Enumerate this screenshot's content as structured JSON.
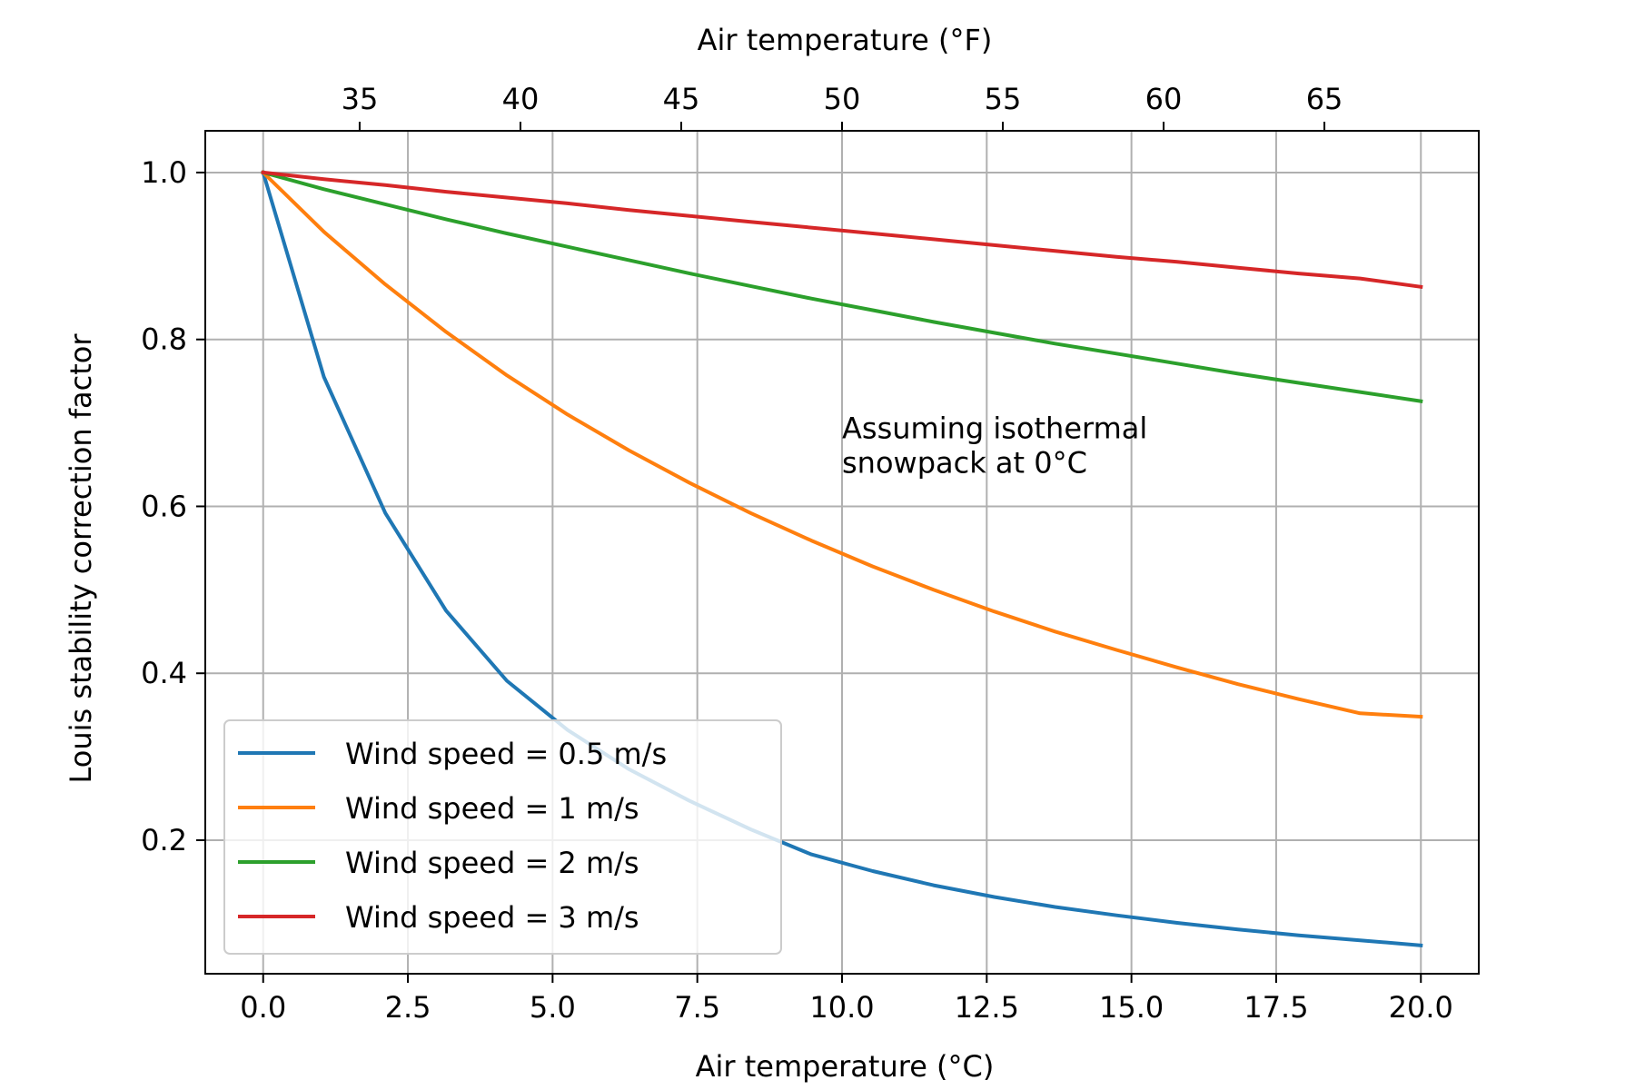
{
  "chart_data": {
    "type": "line",
    "xlabel": "Air temperature (°C)",
    "x2label": "Air temperature (°F)",
    "ylabel": "Louis stability correction factor",
    "xlim": [
      -1,
      21
    ],
    "ylim": [
      0.04,
      1.05
    ],
    "xticks": [
      0.0,
      2.5,
      5.0,
      7.5,
      10.0,
      12.5,
      15.0,
      17.5,
      20.0
    ],
    "xtick_labels": [
      "0.0",
      "2.5",
      "5.0",
      "7.5",
      "10.0",
      "12.5",
      "15.0",
      "17.5",
      "20.0"
    ],
    "yticks": [
      0.2,
      0.4,
      0.6,
      0.8,
      1.0
    ],
    "ytick_labels": [
      "0.2",
      "0.4",
      "0.6",
      "0.8",
      "1.0"
    ],
    "x2ticks_f": [
      35,
      40,
      45,
      50,
      55,
      60,
      65
    ],
    "x2tick_labels": [
      "35",
      "40",
      "45",
      "50",
      "55",
      "60",
      "65"
    ],
    "grid": true,
    "legend_position": "lower-left",
    "annotation": {
      "lines": [
        "Assuming isothermal",
        "snowpack at 0°C"
      ],
      "x": 10.0,
      "y": 0.66
    },
    "x": [
      0.0,
      1.05,
      2.11,
      3.16,
      4.21,
      5.26,
      6.32,
      7.37,
      8.42,
      9.47,
      10.53,
      11.58,
      12.63,
      13.68,
      14.74,
      15.79,
      16.84,
      17.89,
      18.95,
      20.0
    ],
    "series": [
      {
        "name": "Wind speed = 0.5 m/s",
        "color": "#1f77b4",
        "values": [
          1.0,
          0.755,
          0.592,
          0.475,
          0.391,
          0.332,
          0.285,
          0.247,
          0.213,
          0.183,
          0.163,
          0.146,
          0.132,
          0.12,
          0.11,
          0.101,
          0.093,
          0.086,
          0.08,
          0.074
        ]
      },
      {
        "name": "Wind speed = 1 m/s",
        "color": "#ff7f0e",
        "values": [
          1.0,
          0.929,
          0.866,
          0.809,
          0.757,
          0.71,
          0.667,
          0.628,
          0.592,
          0.559,
          0.528,
          0.5,
          0.474,
          0.45,
          0.428,
          0.407,
          0.387,
          0.369,
          0.352,
          0.348
        ]
      },
      {
        "name": "Wind speed = 2 m/s",
        "color": "#2ca02c",
        "values": [
          1.0,
          0.98,
          0.962,
          0.944,
          0.927,
          0.911,
          0.895,
          0.879,
          0.864,
          0.849,
          0.835,
          0.821,
          0.808,
          0.795,
          0.783,
          0.771,
          0.759,
          0.748,
          0.737,
          0.726
        ]
      },
      {
        "name": "Wind speed = 3 m/s",
        "color": "#d62728",
        "values": [
          1.0,
          0.992,
          0.985,
          0.977,
          0.97,
          0.963,
          0.955,
          0.948,
          0.941,
          0.934,
          0.927,
          0.92,
          0.913,
          0.906,
          0.899,
          0.893,
          0.886,
          0.879,
          0.873,
          0.863
        ]
      }
    ]
  }
}
